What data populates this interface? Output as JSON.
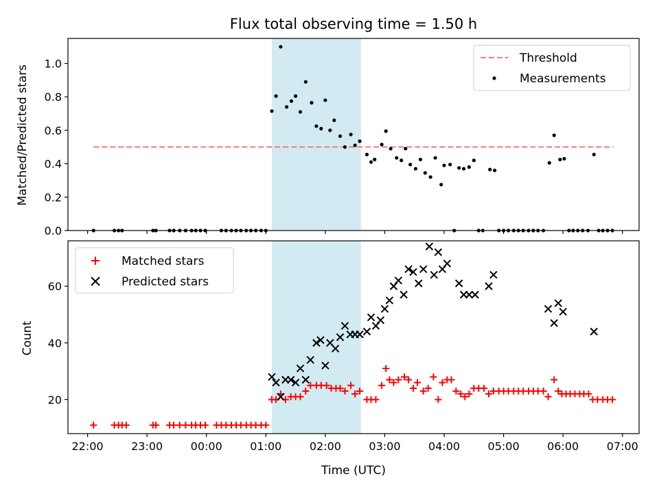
{
  "chart_data": [
    {
      "type": "scatter",
      "title": "Flux total observing time = 1.50 h",
      "xlabel": "",
      "ylabel": "Matched/Predicted stars",
      "ylim": [
        0,
        1.15
      ],
      "yticks": [
        0.0,
        0.2,
        0.4,
        0.6,
        0.8,
        1.0
      ],
      "ytick_labels": [
        "0.0",
        "0.2",
        "0.4",
        "0.6",
        "0.8",
        "1.0"
      ],
      "xlim_hours": [
        -2.33,
        7.28
      ],
      "highlight_span_hours": [
        1.1,
        2.6
      ],
      "threshold": {
        "value": 0.5,
        "x_range_hours": [
          -1.9,
          6.85
        ],
        "color": "#ff7777"
      },
      "legend": {
        "position": "top-right",
        "entries": [
          "Threshold",
          "Measurements"
        ]
      },
      "series": [
        {
          "name": "Measurements",
          "color": "#000000",
          "points": [
            [
              -1.9,
              0.0
            ],
            [
              -1.55,
              0.0
            ],
            [
              -1.48,
              0.0
            ],
            [
              -1.42,
              0.0
            ],
            [
              -0.9,
              0.0
            ],
            [
              -0.85,
              0.0
            ],
            [
              -0.62,
              0.0
            ],
            [
              -0.55,
              0.0
            ],
            [
              -0.45,
              0.0
            ],
            [
              -0.35,
              0.0
            ],
            [
              -0.25,
              0.0
            ],
            [
              -0.18,
              0.0
            ],
            [
              -0.1,
              0.0
            ],
            [
              -0.02,
              0.0
            ],
            [
              0.25,
              0.0
            ],
            [
              0.33,
              0.0
            ],
            [
              0.42,
              0.0
            ],
            [
              0.5,
              0.0
            ],
            [
              0.58,
              0.0
            ],
            [
              0.67,
              0.0
            ],
            [
              0.75,
              0.0
            ],
            [
              0.83,
              0.0
            ],
            [
              0.92,
              0.0
            ],
            [
              1.0,
              0.0
            ],
            [
              1.1,
              0.715
            ],
            [
              1.17,
              0.805
            ],
            [
              1.25,
              1.1
            ],
            [
              1.35,
              0.74
            ],
            [
              1.43,
              0.775
            ],
            [
              1.5,
              0.805
            ],
            [
              1.58,
              0.71
            ],
            [
              1.67,
              0.89
            ],
            [
              1.77,
              0.765
            ],
            [
              1.85,
              0.625
            ],
            [
              1.93,
              0.61
            ],
            [
              2.0,
              0.78
            ],
            [
              2.08,
              0.6
            ],
            [
              2.15,
              0.66
            ],
            [
              2.25,
              0.565
            ],
            [
              2.33,
              0.5
            ],
            [
              2.43,
              0.575
            ],
            [
              2.5,
              0.51
            ],
            [
              2.58,
              0.535
            ],
            [
              2.7,
              0.455
            ],
            [
              2.77,
              0.41
            ],
            [
              2.83,
              0.425
            ],
            [
              2.95,
              0.515
            ],
            [
              3.02,
              0.595
            ],
            [
              3.1,
              0.49
            ],
            [
              3.2,
              0.435
            ],
            [
              3.28,
              0.42
            ],
            [
              3.35,
              0.49
            ],
            [
              3.43,
              0.395
            ],
            [
              3.52,
              0.37
            ],
            [
              3.6,
              0.425
            ],
            [
              3.68,
              0.345
            ],
            [
              3.77,
              0.32
            ],
            [
              3.85,
              0.435
            ],
            [
              3.95,
              0.275
            ],
            [
              4.0,
              0.39
            ],
            [
              4.1,
              0.395
            ],
            [
              4.17,
              0.0
            ],
            [
              4.25,
              0.375
            ],
            [
              4.33,
              0.37
            ],
            [
              4.42,
              0.38
            ],
            [
              4.5,
              0.42
            ],
            [
              4.58,
              0.0
            ],
            [
              4.65,
              0.0
            ],
            [
              4.77,
              0.365
            ],
            [
              4.85,
              0.36
            ],
            [
              4.92,
              0.0
            ],
            [
              5.0,
              0.0
            ],
            [
              5.08,
              0.0
            ],
            [
              5.17,
              0.0
            ],
            [
              5.25,
              0.0
            ],
            [
              5.33,
              0.0
            ],
            [
              5.42,
              0.0
            ],
            [
              5.5,
              0.0
            ],
            [
              5.58,
              0.0
            ],
            [
              5.67,
              0.0
            ],
            [
              5.77,
              0.405
            ],
            [
              5.85,
              0.57
            ],
            [
              5.95,
              0.425
            ],
            [
              6.02,
              0.43
            ],
            [
              6.1,
              0.0
            ],
            [
              6.17,
              0.0
            ],
            [
              6.25,
              0.0
            ],
            [
              6.33,
              0.0
            ],
            [
              6.42,
              0.0
            ],
            [
              6.52,
              0.455
            ],
            [
              6.6,
              0.0
            ],
            [
              6.67,
              0.0
            ],
            [
              6.75,
              0.0
            ],
            [
              6.83,
              0.0
            ]
          ]
        }
      ]
    },
    {
      "type": "scatter",
      "title": "",
      "xlabel": "Time (UTC)",
      "ylabel": "Count",
      "ylim": [
        8,
        76
      ],
      "yticks": [
        20,
        40,
        60
      ],
      "ytick_labels": [
        "20",
        "40",
        "60"
      ],
      "xlim_hours": [
        -2.33,
        7.28
      ],
      "xticks_hours": [
        -2,
        -1,
        0,
        1,
        2,
        3,
        4,
        5,
        6,
        7
      ],
      "xtick_labels": [
        "22:00",
        "23:00",
        "00:00",
        "01:00",
        "02:00",
        "03:00",
        "04:00",
        "05:00",
        "06:00",
        "07:00"
      ],
      "highlight_span_hours": [
        1.1,
        2.6
      ],
      "legend": {
        "position": "top-left",
        "entries": [
          "Matched stars",
          "Predicted stars"
        ]
      },
      "series": [
        {
          "name": "Matched stars",
          "color": "#ff0000",
          "marker": "plus",
          "points": [
            [
              -1.9,
              11
            ],
            [
              -1.55,
              11
            ],
            [
              -1.48,
              11
            ],
            [
              -1.42,
              11
            ],
            [
              -1.35,
              11
            ],
            [
              -0.9,
              11
            ],
            [
              -0.85,
              11
            ],
            [
              -0.62,
              11
            ],
            [
              -0.55,
              11
            ],
            [
              -0.45,
              11
            ],
            [
              -0.35,
              11
            ],
            [
              -0.25,
              11
            ],
            [
              -0.18,
              11
            ],
            [
              -0.1,
              11
            ],
            [
              -0.02,
              11
            ],
            [
              0.17,
              11
            ],
            [
              0.25,
              11
            ],
            [
              0.33,
              11
            ],
            [
              0.42,
              11
            ],
            [
              0.5,
              11
            ],
            [
              0.58,
              11
            ],
            [
              0.67,
              11
            ],
            [
              0.75,
              11
            ],
            [
              0.83,
              11
            ],
            [
              0.92,
              11
            ],
            [
              1.0,
              11
            ],
            [
              1.1,
              20
            ],
            [
              1.17,
              20
            ],
            [
              1.25,
              22
            ],
            [
              1.33,
              20
            ],
            [
              1.42,
              21
            ],
            [
              1.5,
              21
            ],
            [
              1.58,
              21
            ],
            [
              1.67,
              23
            ],
            [
              1.75,
              25
            ],
            [
              1.85,
              25
            ],
            [
              1.93,
              25
            ],
            [
              2.02,
              25
            ],
            [
              2.1,
              24
            ],
            [
              2.18,
              24
            ],
            [
              2.25,
              24
            ],
            [
              2.33,
              23
            ],
            [
              2.43,
              25
            ],
            [
              2.5,
              22
            ],
            [
              2.58,
              23
            ],
            [
              2.7,
              20
            ],
            [
              2.77,
              20
            ],
            [
              2.85,
              20
            ],
            [
              2.95,
              25
            ],
            [
              3.02,
              31
            ],
            [
              3.08,
              27
            ],
            [
              3.15,
              26
            ],
            [
              3.23,
              27
            ],
            [
              3.33,
              28
            ],
            [
              3.4,
              27
            ],
            [
              3.48,
              24
            ],
            [
              3.55,
              26
            ],
            [
              3.65,
              23
            ],
            [
              3.73,
              24
            ],
            [
              3.82,
              28
            ],
            [
              3.9,
              20
            ],
            [
              3.97,
              26
            ],
            [
              4.05,
              27
            ],
            [
              4.12,
              27
            ],
            [
              4.2,
              23
            ],
            [
              4.28,
              22
            ],
            [
              4.35,
              21
            ],
            [
              4.42,
              22
            ],
            [
              4.5,
              24
            ],
            [
              4.58,
              24
            ],
            [
              4.67,
              24
            ],
            [
              4.75,
              22
            ],
            [
              4.83,
              23
            ],
            [
              4.92,
              23
            ],
            [
              5.0,
              23
            ],
            [
              5.08,
              23
            ],
            [
              5.17,
              23
            ],
            [
              5.25,
              23
            ],
            [
              5.33,
              23
            ],
            [
              5.42,
              23
            ],
            [
              5.5,
              23
            ],
            [
              5.58,
              23
            ],
            [
              5.67,
              23
            ],
            [
              5.75,
              21
            ],
            [
              5.85,
              27
            ],
            [
              5.92,
              23
            ],
            [
              5.98,
              22
            ],
            [
              6.05,
              22
            ],
            [
              6.12,
              22
            ],
            [
              6.2,
              22
            ],
            [
              6.28,
              22
            ],
            [
              6.35,
              22
            ],
            [
              6.43,
              22
            ],
            [
              6.5,
              20
            ],
            [
              6.58,
              20
            ],
            [
              6.67,
              20
            ],
            [
              6.75,
              20
            ],
            [
              6.83,
              20
            ]
          ]
        },
        {
          "name": "Predicted stars",
          "color": "#000000",
          "marker": "x",
          "points": [
            [
              1.1,
              28
            ],
            [
              1.17,
              26
            ],
            [
              1.25,
              21
            ],
            [
              1.33,
              27
            ],
            [
              1.42,
              27
            ],
            [
              1.5,
              26
            ],
            [
              1.58,
              31
            ],
            [
              1.67,
              27
            ],
            [
              1.75,
              34
            ],
            [
              1.85,
              40
            ],
            [
              1.92,
              41
            ],
            [
              2.0,
              32
            ],
            [
              2.08,
              40
            ],
            [
              2.17,
              38
            ],
            [
              2.25,
              42
            ],
            [
              2.33,
              46
            ],
            [
              2.42,
              43
            ],
            [
              2.5,
              43
            ],
            [
              2.58,
              43
            ],
            [
              2.7,
              44
            ],
            [
              2.77,
              49
            ],
            [
              2.85,
              46
            ],
            [
              2.93,
              48
            ],
            [
              3.0,
              52
            ],
            [
              3.08,
              55
            ],
            [
              3.15,
              60
            ],
            [
              3.23,
              62
            ],
            [
              3.32,
              57
            ],
            [
              3.4,
              66
            ],
            [
              3.48,
              65
            ],
            [
              3.57,
              61
            ],
            [
              3.65,
              66
            ],
            [
              3.75,
              74
            ],
            [
              3.83,
              64
            ],
            [
              3.9,
              72
            ],
            [
              3.97,
              66
            ],
            [
              4.05,
              68
            ],
            [
              4.25,
              61
            ],
            [
              4.33,
              57
            ],
            [
              4.42,
              57
            ],
            [
              4.52,
              57
            ],
            [
              4.75,
              60
            ],
            [
              4.83,
              64
            ],
            [
              5.75,
              52
            ],
            [
              5.85,
              47
            ],
            [
              5.92,
              54
            ],
            [
              6.0,
              51
            ],
            [
              6.52,
              44
            ]
          ]
        }
      ]
    }
  ]
}
